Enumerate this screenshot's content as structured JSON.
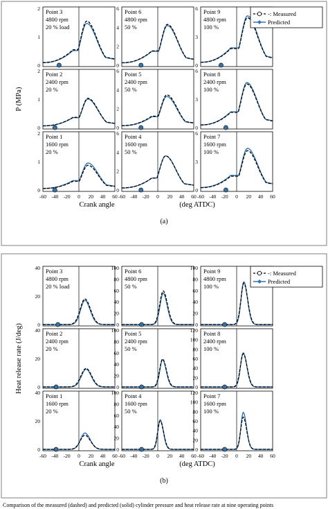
{
  "colors": {
    "measured": "#000000",
    "predicted": "#2e75b6",
    "frame": "#7f7f7f",
    "axis": "#000000"
  },
  "caption": {
    "text": "Comparison of the measured (dashed) and predicted (solid) cylinder pressure and heat release rate at nine operating points"
  },
  "chart_data": [
    {
      "panel": "(a)",
      "type": "line",
      "ylabel": "P   (MPa)",
      "xlabel_left": "Crank angle",
      "xlabel_right": "(deg ATDC)",
      "xlim": [
        -60,
        60
      ],
      "xticks": [
        -60,
        -40,
        -20,
        0,
        20,
        40,
        60
      ],
      "legend": {
        "placement": "top-right",
        "entries": [
          "-: Measured",
          "Predicted"
        ]
      },
      "rows": [
        {
          "ylim": [
            0,
            2
          ],
          "yticks": [
            0,
            1,
            2
          ],
          "cells": [
            {
              "label": [
                "Point 3",
                "4800 rpm",
                "20 % load"
              ],
              "marker_x": -33,
              "measured_peak": 1.55,
              "predicted_peak": 1.47,
              "peak_x": 13
            },
            {
              "label": [
                "Point 6",
                "4800 rpm",
                "50 %"
              ],
              "marker_x": -28,
              "measured_peak": 4.3,
              "predicted_peak": 4.18,
              "peak_x": 16
            },
            {
              "label": [
                "Point 9",
                "4800 rpm",
                "100 %"
              ],
              "marker_x": -26,
              "measured_peak": 5.0,
              "predicted_peak": 5.2,
              "peak_x": 18
            }
          ],
          "ylims": [
            [
              0,
              2
            ],
            [
              0,
              6
            ],
            [
              0,
              6
            ]
          ],
          "ytick_sets": [
            [
              0,
              1,
              2
            ],
            [
              0,
              2,
              4,
              6
            ],
            [
              0,
              3,
              6,
              9
            ]
          ]
        },
        {
          "cells": [
            {
              "label": [
                "Point 2",
                "2400 rpm",
                "20 %"
              ],
              "marker_x": -40,
              "measured_peak": 1.03,
              "predicted_peak": 1.0,
              "peak_x": 15
            },
            {
              "label": [
                "Point 5",
                "2400 rpm",
                "50 %"
              ],
              "marker_x": -28,
              "measured_peak": 3.45,
              "predicted_peak": 3.28,
              "peak_x": 15
            },
            {
              "label": [
                "Point 8",
                "2400 rpm",
                "100 %"
              ],
              "marker_x": -18,
              "measured_peak": 4.6,
              "predicted_peak": 4.75,
              "peak_x": 17
            }
          ],
          "ylims": [
            [
              0,
              2
            ],
            [
              0,
              6
            ],
            [
              0,
              6
            ]
          ],
          "ytick_sets": [
            [
              0,
              1,
              2
            ],
            [
              0,
              2,
              4,
              6
            ],
            [
              0,
              3,
              6,
              9
            ]
          ]
        },
        {
          "cells": [
            {
              "label": [
                "Point 1",
                "1600 rpm",
                "20 %"
              ],
              "marker_x": -40,
              "measured_peak": 0.87,
              "predicted_peak": 0.95,
              "peak_x": 15
            },
            {
              "label": [
                "Point 4",
                "1600 rpm",
                "50 %"
              ],
              "marker_x": -28,
              "measured_peak": 3.6,
              "predicted_peak": 3.6,
              "peak_x": 13
            },
            {
              "label": [
                "Point 7",
                "1600 rpm",
                "100 %"
              ],
              "marker_x": -18,
              "measured_peak": 4.15,
              "predicted_peak": 4.4,
              "peak_x": 18
            }
          ],
          "ylims": [
            [
              0,
              2
            ],
            [
              0,
              6
            ],
            [
              0,
              6
            ]
          ],
          "ytick_sets": [
            [
              0,
              1,
              2
            ],
            [
              0,
              2,
              4,
              6
            ],
            [
              0,
              3,
              6,
              9
            ]
          ]
        }
      ]
    },
    {
      "panel": "(b)",
      "type": "line",
      "ylabel": "Heat release rate    (J/deg)",
      "xlabel_left": "Crank angle",
      "xlabel_right": "(deg ATDC)",
      "xlim": [
        -60,
        60
      ],
      "xticks": [
        -60,
        -40,
        -20,
        0,
        20,
        40,
        60
      ],
      "legend": {
        "placement": "top-right",
        "entries": [
          "-: Measured",
          "Predicted"
        ]
      },
      "rows": [
        {
          "cells": [
            {
              "label": [
                "Point 3",
                "4800 rpm",
                "20 % load"
              ],
              "marker_x": -35,
              "measured_peak": 18,
              "predicted_peak": 17,
              "peak_x": 10,
              "w_rise": 11,
              "w_fall": 13
            },
            {
              "label": [
                "Point 6",
                "4800 rpm",
                "50 %"
              ],
              "marker_x": -27,
              "measured_peak": 59,
              "predicted_peak": 55,
              "peak_x": 9,
              "w_rise": 8,
              "w_fall": 10
            },
            {
              "label": [
                "Point 9",
                "4800 rpm",
                "100 %"
              ],
              "marker_x": -20,
              "measured_peak": 73,
              "predicted_peak": 75,
              "peak_x": 12,
              "w_rise": 7,
              "w_fall": 9
            }
          ],
          "ylims": [
            [
              0,
              40
            ],
            [
              0,
              100
            ],
            [
              0,
              100
            ]
          ],
          "ytick_sets": [
            [
              0,
              20,
              40
            ],
            [
              0,
              20,
              40,
              60,
              80,
              100
            ],
            [
              0,
              20,
              40,
              60,
              80,
              100
            ]
          ]
        },
        {
          "cells": [
            {
              "label": [
                "Point 2",
                "2400 rpm",
                "20 %"
              ],
              "marker_x": -38,
              "measured_peak": 13,
              "predicted_peak": 12.5,
              "peak_x": 12,
              "w_rise": 12,
              "w_fall": 13
            },
            {
              "label": [
                "Point 5",
                "2400 rpm",
                "50 %"
              ],
              "marker_x": -27,
              "measured_peak": 49,
              "predicted_peak": 48,
              "peak_x": 8,
              "w_rise": 7,
              "w_fall": 9
            },
            {
              "label": [
                "Point 8",
                "2400 rpm",
                "100 %"
              ],
              "marker_x": -20,
              "measured_peak": 70,
              "predicted_peak": 72,
              "peak_x": 11,
              "w_rise": 7,
              "w_fall": 9
            }
          ],
          "ylims": [
            [
              0,
              40
            ],
            [
              0,
              100
            ],
            [
              0,
              120
            ]
          ],
          "ytick_sets": [
            [
              0,
              20,
              40
            ],
            [
              0,
              20,
              40,
              60,
              80,
              100
            ],
            [
              0,
              20,
              40,
              60,
              80,
              100,
              120
            ]
          ]
        },
        {
          "cells": [
            {
              "label": [
                "Point 1",
                "1600 rpm",
                "20 %"
              ],
              "marker_x": -38,
              "measured_peak": 10,
              "predicted_peak": 11.5,
              "peak_x": 10,
              "w_rise": 11,
              "w_fall": 13
            },
            {
              "label": [
                "Point 4",
                "1600 rpm",
                "50 %"
              ],
              "marker_x": -27,
              "measured_peak": 50,
              "predicted_peak": 52,
              "peak_x": 4,
              "w_rise": 6,
              "w_fall": 8
            },
            {
              "label": [
                "Point 7",
                "1600 rpm",
                "100 %"
              ],
              "marker_x": -20,
              "measured_peak": 68,
              "predicted_peak": 78,
              "peak_x": 11,
              "w_rise": 6,
              "w_fall": 8
            }
          ],
          "ylims": [
            [
              0,
              40
            ],
            [
              0,
              100
            ],
            [
              0,
              120
            ]
          ],
          "ytick_sets": [
            [
              0,
              20,
              40
            ],
            [
              0,
              20,
              40,
              60,
              80,
              100
            ],
            [
              0,
              20,
              40,
              60,
              80,
              100,
              120
            ]
          ]
        }
      ]
    }
  ]
}
